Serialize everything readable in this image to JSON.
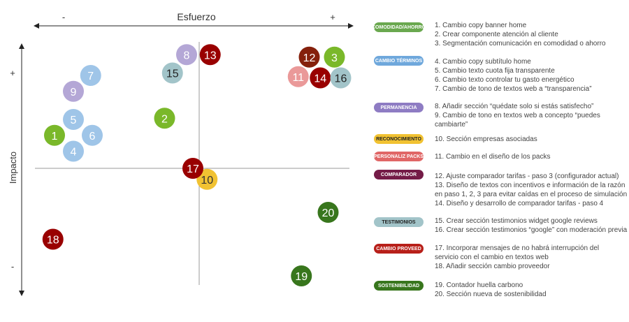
{
  "chart_data": {
    "type": "scatter",
    "xlabel": "Esfuerzo",
    "ylabel": "Impacto",
    "x_minus": "-",
    "x_plus": "+",
    "y_plus": "+",
    "y_minus": "-",
    "xlim": [
      -10,
      10
    ],
    "ylim": [
      -10,
      10
    ],
    "grid": false,
    "legend_placement": "right",
    "points": [
      {
        "label": "1",
        "x": -9.2,
        "y": 2.7,
        "color": "#7ab82a",
        "text_color": "#ffffff"
      },
      {
        "label": "2",
        "x": -2.2,
        "y": 4.1,
        "color": "#7ab82a",
        "text_color": "#ffffff"
      },
      {
        "label": "3",
        "x": 8.6,
        "y": 9.1,
        "color": "#7ab82a",
        "text_color": "#ffffff"
      },
      {
        "label": "4",
        "x": -8.0,
        "y": 1.4,
        "color": "#9fc5e8",
        "text_color": "#ffffff"
      },
      {
        "label": "5",
        "x": -8.0,
        "y": 4.0,
        "color": "#9fc5e8",
        "text_color": "#ffffff"
      },
      {
        "label": "6",
        "x": -6.8,
        "y": 2.7,
        "color": "#9fc5e8",
        "text_color": "#ffffff"
      },
      {
        "label": "7",
        "x": -6.9,
        "y": 7.6,
        "color": "#9fc5e8",
        "text_color": "#ffffff"
      },
      {
        "label": "8",
        "x": -0.8,
        "y": 9.3,
        "color": "#b4a7d6",
        "text_color": "#ffffff"
      },
      {
        "label": "9",
        "x": -8.0,
        "y": 6.3,
        "color": "#b4a7d6",
        "text_color": "#ffffff"
      },
      {
        "label": "10",
        "x": 0.5,
        "y": -0.9,
        "color": "#f1c232",
        "text_color": "#333333"
      },
      {
        "label": "11",
        "x": 6.3,
        "y": 7.5,
        "color": "#ea9999",
        "text_color": "#ffffff"
      },
      {
        "label": "12",
        "x": 7.0,
        "y": 9.1,
        "color": "#85200c",
        "text_color": "#ffffff"
      },
      {
        "label": "13",
        "x": 0.7,
        "y": 9.3,
        "color": "#990000",
        "text_color": "#ffffff"
      },
      {
        "label": "14",
        "x": 7.7,
        "y": 7.4,
        "color": "#990000",
        "text_color": "#ffffff"
      },
      {
        "label": "15",
        "x": -1.7,
        "y": 7.8,
        "color": "#a2c4c9",
        "text_color": "#222222"
      },
      {
        "label": "16",
        "x": 9.0,
        "y": 7.4,
        "color": "#a2c4c9",
        "text_color": "#222222"
      },
      {
        "label": "17",
        "x": -0.4,
        "y": 0.0,
        "color": "#990000",
        "text_color": "#ffffff"
      },
      {
        "label": "18",
        "x": -9.3,
        "y": -5.8,
        "color": "#990000",
        "text_color": "#ffffff"
      },
      {
        "label": "19",
        "x": 6.5,
        "y": -8.8,
        "color": "#38761d",
        "text_color": "#ffffff"
      },
      {
        "label": "20",
        "x": 8.2,
        "y": -3.6,
        "color": "#38761d",
        "text_color": "#ffffff"
      }
    ]
  },
  "legend": [
    {
      "label": "COMODIDAD/AHORRO",
      "color": "#6aa84f",
      "text_color": "#ffffff",
      "items": [
        "1. Cambio copy banner home",
        "2. Crear componente atención al cliente",
        "3. Segmentación comunicación en comodidad o ahorro"
      ]
    },
    {
      "label": "CAMBIO TÉRMINOS",
      "color": "#6fa8dc",
      "text_color": "#ffffff",
      "items": [
        "4. Cambio copy subtítulo home",
        "5. Cambio texto cuota fija transparente",
        "6. Cambio texto controlar tu gasto energético",
        "7. Cambio de tono de textos web a “transparencia”"
      ]
    },
    {
      "label": "PERMANENCIA",
      "color": "#8e7cc3",
      "text_color": "#ffffff",
      "items": [
        "8. Añadir sección “quédate solo si estás satisfecho”",
        "9. Cambio de tono en textos web a concepto “puedes",
        "cambiarte”"
      ]
    },
    {
      "label": "RECONOCIMIENTO",
      "color": "#f1c232",
      "text_color": "#222222",
      "items": [
        "10. Sección empresas asociadas"
      ]
    },
    {
      "label": "PERSONALIZ PACKS",
      "color": "#e06666",
      "text_color": "#ffffff",
      "items": [
        "11. Cambio en el diseño de los packs"
      ]
    },
    {
      "label": "COMPARADOR",
      "color": "#741b47",
      "text_color": "#ffffff",
      "items": [
        "12. Ajuste comparador tarifas - paso 3 (configurador actual)",
        "13. Diseño de textos con incentivos e información de la razón",
        "en paso 1, 2, 3 para evitar caídas en el proceso de simulación",
        "14. Diseño y desarrollo de comparador tarifas - paso 4"
      ]
    },
    {
      "label": "TESTIMONIOS",
      "color": "#a2c4c9",
      "text_color": "#222222",
      "items": [
        "15. Crear sección testimonios widget google reviews",
        "16. Crear sección testimonios “google” con moderación previa"
      ]
    },
    {
      "label": "CAMBIO PROVEED",
      "color": "#b8201a",
      "text_color": "#ffffff",
      "items": [
        "17. Incorporar mensajes de no habrá interrupción del",
        "servicio con el cambio en textos web",
        "18. Añadir sección cambio proveedor"
      ]
    },
    {
      "label": "SOSTENIBILIDAD",
      "color": "#38761d",
      "text_color": "#ffffff",
      "items": [
        "19. Contador huella carbono",
        "20. Sección nueva de sostenibilidad"
      ]
    }
  ]
}
